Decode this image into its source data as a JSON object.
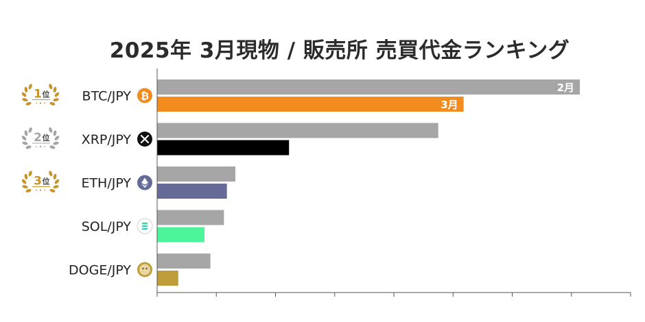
{
  "title": "2025年 3月現物 / 販売所 売買代金ランキング",
  "rank_suffix": "位",
  "colors": {
    "previous_month": "#a6a6a6",
    "gold_laurel": "#c8932d",
    "silver_laurel": "#a4a4a4",
    "axis": "#555555"
  },
  "chart_data": {
    "type": "bar",
    "orientation": "horizontal",
    "categories": [
      "BTC/JPY",
      "XRP/JPY",
      "ETH/JPY",
      "SOL/JPY",
      "DOGE/JPY"
    ],
    "ranks": [
      1,
      2,
      3,
      null,
      null
    ],
    "icons": [
      "bitcoin-icon",
      "xrp-icon",
      "ethereum-icon",
      "solana-icon",
      "dogecoin-icon"
    ],
    "series": [
      {
        "name": "2月",
        "values": [
          100,
          66.5,
          18.5,
          15.8,
          12.6
        ],
        "color": "#a6a6a6"
      },
      {
        "name": "3月",
        "values": [
          72.5,
          31.2,
          16.5,
          11.2,
          5.0
        ],
        "colors": [
          "#f28c1e",
          "#000000",
          "#636b96",
          "#4df59a",
          "#bf9d3a"
        ]
      }
    ],
    "xlim": [
      0,
      112
    ],
    "x_ticks": 8,
    "legend_placement": "on-bars-first-category"
  }
}
